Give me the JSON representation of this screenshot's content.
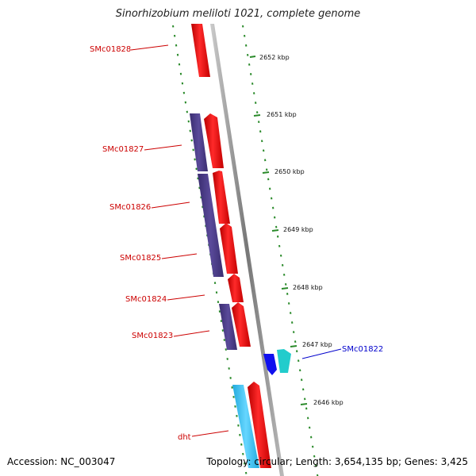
{
  "title": "Sinorhizobium meliloti 1021, complete genome",
  "footer": {
    "accession": "Accession: NC_003047",
    "stats": "Topology: circular; Length: 3,654,135 bp; Genes: 3,425"
  },
  "scale_unit": "kbp",
  "scale_ticks": [
    {
      "value": 2652,
      "label": "2652 kbp"
    },
    {
      "value": 2651,
      "label": "2651 kbp"
    },
    {
      "value": 2650,
      "label": "2650 kbp"
    },
    {
      "value": 2649,
      "label": "2649 kbp"
    },
    {
      "value": 2648,
      "label": "2648 kbp"
    },
    {
      "value": 2647,
      "label": "2647 kbp"
    },
    {
      "value": 2646,
      "label": "2646 kbp"
    }
  ],
  "genes": [
    {
      "name": "SMc01828",
      "color": "#cc0000"
    },
    {
      "name": "SMc01827",
      "color": "#cc0000"
    },
    {
      "name": "SMc01826",
      "color": "#cc0000"
    },
    {
      "name": "SMc01825",
      "color": "#cc0000"
    },
    {
      "name": "SMc01824",
      "color": "#cc0000"
    },
    {
      "name": "SMc01823",
      "color": "#cc0000"
    },
    {
      "name": "SMc01822",
      "color": "#0000cc"
    },
    {
      "name": "dht",
      "color": "#cc0000"
    }
  ],
  "colors": {
    "forward_gene": "#ee1111",
    "reverse_gene": "#4a3a8a",
    "cds_blue": "#1010ee",
    "cds_cyan": "#22cccc",
    "cds_light_blue": "#33bbee",
    "backbone": "#888888",
    "tick": "#2a8a2a"
  }
}
